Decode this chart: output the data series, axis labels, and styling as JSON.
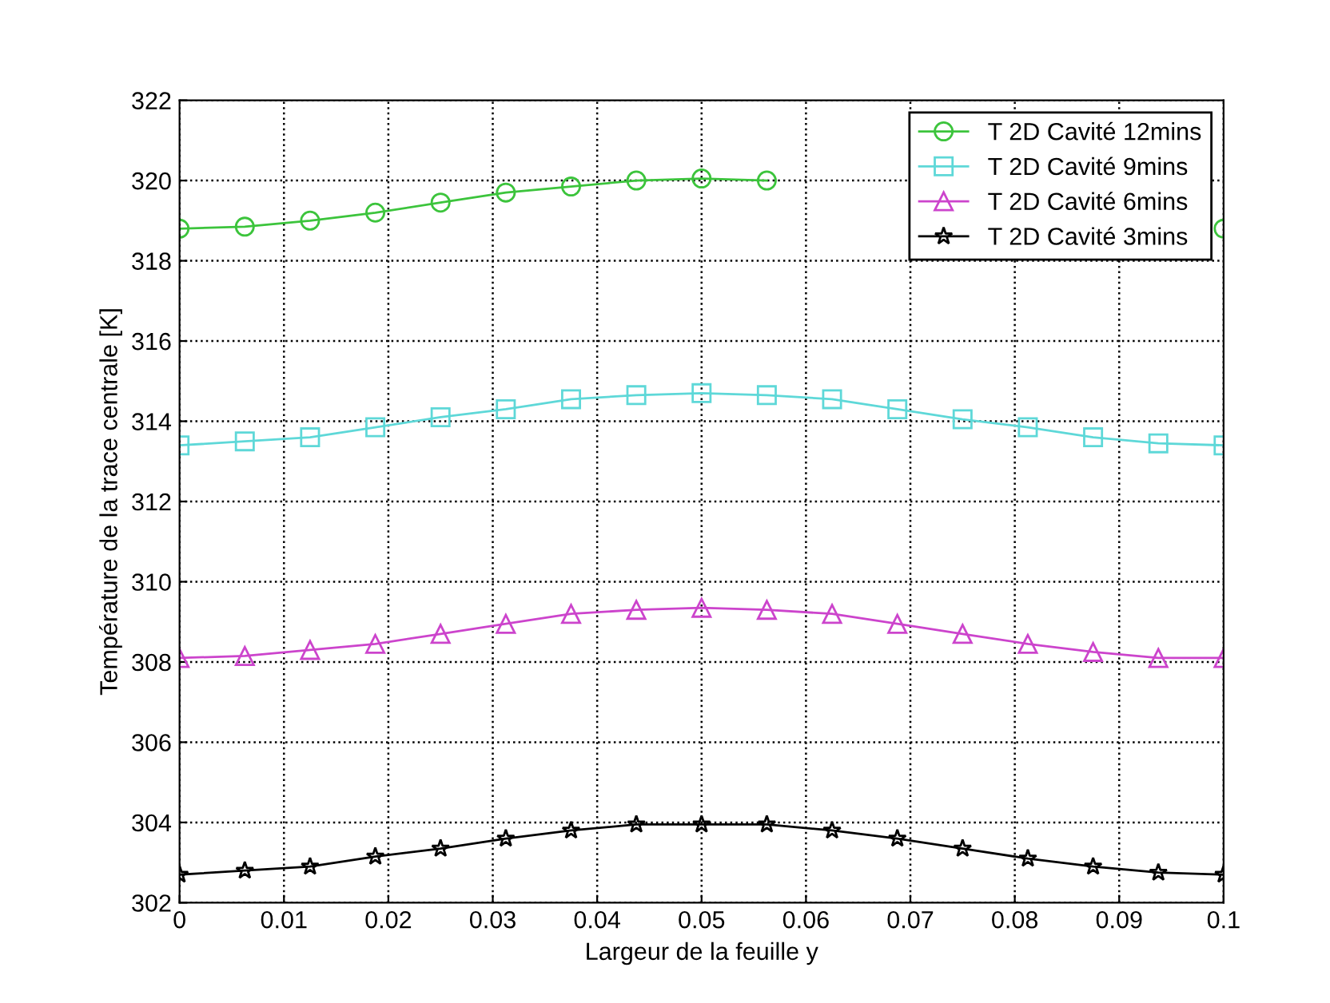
{
  "chart_data": {
    "type": "line",
    "xlabel": "Largeur de la feuille y",
    "ylabel": "Température de la trace centrale [K]",
    "x": [
      0,
      0.00625,
      0.0125,
      0.01875,
      0.025,
      0.03125,
      0.0375,
      0.04375,
      0.05,
      0.05625,
      0.0625,
      0.06875,
      0.075,
      0.08125,
      0.0875,
      0.09375,
      0.1
    ],
    "series": [
      {
        "name": "T 2D Cavité 12mins",
        "color": "#3cc43c",
        "marker": "circle",
        "values": [
          318.8,
          318.85,
          319.0,
          319.2,
          319.45,
          319.7,
          319.85,
          320.0,
          320.05,
          320.0,
          null,
          null,
          null,
          null,
          null,
          null,
          318.8
        ]
      },
      {
        "name": "T 2D Cavité 9mins",
        "color": "#5ed8d8",
        "marker": "square",
        "values": [
          313.4,
          313.5,
          313.6,
          313.85,
          314.1,
          314.3,
          314.55,
          314.65,
          314.7,
          314.65,
          314.55,
          314.3,
          314.05,
          313.85,
          313.6,
          313.45,
          313.4
        ]
      },
      {
        "name": "T 2D Cavité 6mins",
        "color": "#cc44cc",
        "marker": "triangle",
        "values": [
          308.1,
          308.15,
          308.3,
          308.45,
          308.7,
          308.95,
          309.2,
          309.3,
          309.35,
          309.3,
          309.2,
          308.95,
          308.7,
          308.45,
          308.25,
          308.1,
          308.1
        ]
      },
      {
        "name": "T 2D Cavité 3mins",
        "color": "#000000",
        "marker": "star",
        "values": [
          302.7,
          302.8,
          302.9,
          303.15,
          303.35,
          303.6,
          303.8,
          303.95,
          303.95,
          303.95,
          303.8,
          303.6,
          303.35,
          303.1,
          302.9,
          302.75,
          302.7
        ]
      }
    ],
    "xlim": [
      0,
      0.1
    ],
    "xticks": [
      0,
      0.01,
      0.02,
      0.03,
      0.04,
      0.05,
      0.06,
      0.07,
      0.08,
      0.09,
      0.1
    ],
    "ylim": [
      302,
      322
    ],
    "yticks": [
      302,
      304,
      306,
      308,
      310,
      312,
      314,
      316,
      318,
      320,
      322
    ],
    "grid": true,
    "legend": "top right",
    "line_style": "solid"
  }
}
